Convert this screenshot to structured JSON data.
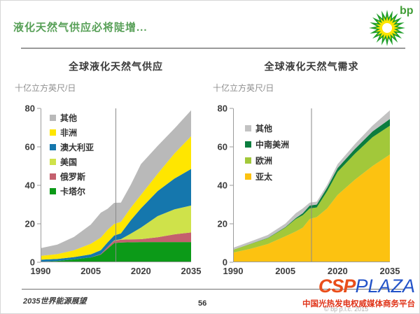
{
  "slide": {
    "title": "液化天然气供应必将陡增...",
    "footer_left": "2035世界能源展望",
    "page_number": "56",
    "copyright": "© bp p.l.c. 2015"
  },
  "bp_logo": {
    "text": "bp",
    "text_color": "#3f9c35",
    "outer_color": "#1e9e28",
    "mid_color": "#ffe600",
    "center_color": "#ffffff"
  },
  "watermark": {
    "csp": "CSP",
    "plaza": "PLAZA",
    "tagline": "中国光热发电权威媒体商务平台",
    "csp_color": "#e94e1b",
    "plaza_color": "#2353c8",
    "tagline_color": "#e03318"
  },
  "chart_data": [
    {
      "type": "area",
      "title": "全球液化天然气供应",
      "ylabel": "十亿立方英尺/日",
      "xlabel": "",
      "xlim": [
        1990,
        2035
      ],
      "ylim": [
        0,
        80
      ],
      "xticks": [
        1990,
        2005,
        2020,
        2035
      ],
      "yticks": [
        0,
        20,
        40,
        60,
        80
      ],
      "divider_year": 2012.5,
      "grid": false,
      "legend_position": "upper-left-inside",
      "x": [
        1990,
        1995,
        2000,
        2005,
        2008,
        2010,
        2012,
        2014,
        2017,
        2020,
        2025,
        2030,
        2035
      ],
      "series": [
        {
          "name": "卡塔尔",
          "color": "#0c9a18",
          "values": [
            0.3,
            0.7,
            1.5,
            2.5,
            4.0,
            7.0,
            10.0,
            10.3,
            10.4,
            10.5,
            10.5,
            10.5,
            10.5
          ]
        },
        {
          "name": "俄罗斯",
          "color": "#c4606e",
          "values": [
            0.0,
            0.0,
            0.0,
            0.0,
            0.3,
            1.0,
            1.2,
            1.4,
            1.5,
            1.5,
            2.5,
            4.0,
            5.0
          ]
        },
        {
          "name": "美国",
          "color": "#cfe24a",
          "values": [
            0.0,
            0.0,
            0.0,
            0.0,
            0.0,
            0.0,
            0.2,
            0.3,
            3.0,
            6.0,
            11.0,
            13.0,
            14.0
          ]
        },
        {
          "name": "澳大利亚",
          "color": "#1577ad",
          "values": [
            1.0,
            1.0,
            1.2,
            1.6,
            2.0,
            2.3,
            2.5,
            3.0,
            7.0,
            10.0,
            13.0,
            16.0,
            19.0
          ]
        },
        {
          "name": "非洲",
          "color": "#ffe600",
          "values": [
            2.0,
            2.5,
            3.5,
            5.5,
            6.5,
            6.5,
            6.0,
            6.0,
            6.5,
            7.0,
            9.0,
            13.0,
            17.0
          ]
        },
        {
          "name": "其他",
          "color": "#b9b9b9",
          "values": [
            4.0,
            5.0,
            7.0,
            10.0,
            13.0,
            11.0,
            11.0,
            10.0,
            12.0,
            16.0,
            14.5,
            13.0,
            13.5
          ]
        }
      ]
    },
    {
      "type": "area",
      "title": "全球液化天然气需求",
      "ylabel": "十亿立方英尺/日",
      "xlabel": "",
      "xlim": [
        1990,
        2035
      ],
      "ylim": [
        0,
        80
      ],
      "xticks": [
        1990,
        2005,
        2020,
        2035
      ],
      "yticks": [
        0,
        20,
        40,
        60,
        80
      ],
      "divider_year": 2012.5,
      "grid": false,
      "legend_position": "upper-left-inside",
      "x": [
        1990,
        1995,
        2000,
        2005,
        2008,
        2010,
        2012,
        2014,
        2017,
        2020,
        2025,
        2030,
        2035
      ],
      "series": [
        {
          "name": "亚太",
          "color": "#fcc211",
          "values": [
            5.0,
            7.0,
            9.5,
            13.5,
            16.0,
            18.0,
            22.5,
            23.5,
            28.0,
            35.0,
            43.0,
            50.0,
            56.0
          ]
        },
        {
          "name": "欧洲",
          "color": "#a2c83a",
          "values": [
            1.5,
            2.5,
            3.0,
            4.5,
            6.5,
            6.5,
            5.5,
            5.0,
            9.0,
            12.0,
            13.5,
            15.0,
            15.0
          ]
        },
        {
          "name": "中南美洲",
          "color": "#0b7d3e",
          "values": [
            0.0,
            0.1,
            0.2,
            0.3,
            0.5,
            1.0,
            1.5,
            1.5,
            1.8,
            2.0,
            2.5,
            3.0,
            3.5
          ]
        },
        {
          "name": "其他",
          "color": "#c2c2c2",
          "values": [
            1.0,
            1.2,
            1.5,
            1.8,
            2.5,
            2.5,
            1.5,
            1.5,
            1.5,
            2.0,
            2.5,
            3.0,
            4.5
          ]
        }
      ]
    }
  ]
}
